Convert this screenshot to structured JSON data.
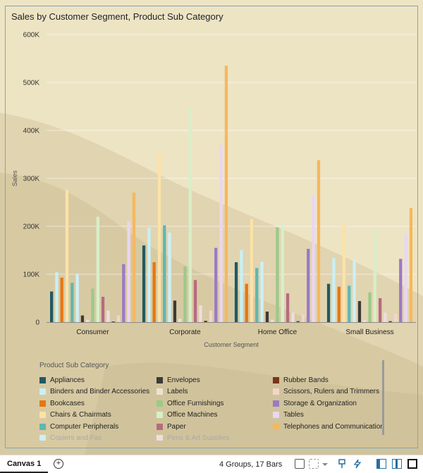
{
  "chart_data": {
    "type": "bar",
    "title": "Sales by Customer Segment, Product Sub Category",
    "xlabel": "Customer Segment",
    "ylabel": "Sales",
    "ylim": [
      0,
      600000
    ],
    "yticks": [
      0,
      100000,
      200000,
      300000,
      400000,
      500000,
      600000
    ],
    "ytick_labels": [
      "0",
      "100K",
      "200K",
      "300K",
      "400K",
      "500K",
      "600K"
    ],
    "grid": true,
    "legend_title": "Product Sub Category",
    "legend_position": "bottom",
    "categories": [
      "Consumer",
      "Corporate",
      "Home Office",
      "Small Business"
    ],
    "series": [
      {
        "name": "Appliances",
        "color": "#1f5a63",
        "values": [
          64000,
          160000,
          125000,
          80000
        ]
      },
      {
        "name": "Binders and Binder Accessories",
        "color": "#c8f0f6",
        "values": [
          104000,
          197000,
          150000,
          134000
        ]
      },
      {
        "name": "Bookcases",
        "color": "#e8760f",
        "values": [
          93000,
          125000,
          80000,
          74000
        ]
      },
      {
        "name": "Chairs & Chairmats",
        "color": "#fde2a6",
        "values": [
          276000,
          350000,
          215000,
          205000
        ]
      },
      {
        "name": "Computer Peripherals",
        "color": "#5fb7b0",
        "values": [
          82000,
          202000,
          113000,
          76000
        ]
      },
      {
        "name": "Copiers and Fax",
        "color": "#cfeff6",
        "values": [
          101000,
          187000,
          126000,
          132000
        ]
      },
      {
        "name": "Envelopes",
        "color": "#3e3a36",
        "values": [
          14000,
          45000,
          22000,
          44000
        ]
      },
      {
        "name": "Labels",
        "color": "#f0e1cf",
        "values": [
          5000,
          7000,
          5000,
          5000
        ]
      },
      {
        "name": "Office Furnishings",
        "color": "#9cc98a",
        "values": [
          70000,
          116000,
          198000,
          62000
        ]
      },
      {
        "name": "Office Machines",
        "color": "#d7efc9",
        "values": [
          220000,
          450000,
          210000,
          195000
        ]
      },
      {
        "name": "Paper",
        "color": "#b76a80",
        "values": [
          53000,
          88000,
          60000,
          50000
        ]
      },
      {
        "name": "Pens & Art Supplies",
        "color": "#f0dde0",
        "values": [
          24000,
          35000,
          20000,
          20000
        ]
      },
      {
        "name": "Rubber Bands",
        "color": "#7a3518",
        "values": [
          1500,
          3000,
          2000,
          2000
        ]
      },
      {
        "name": "Scissors, Rulers and Trimmers",
        "color": "#f3d6c8",
        "values": [
          14000,
          24000,
          16000,
          18000
        ]
      },
      {
        "name": "Storage & Organization",
        "color": "#9b79c6",
        "values": [
          121000,
          155000,
          153000,
          132000
        ]
      },
      {
        "name": "Tables",
        "color": "#ead6f2",
        "values": [
          210000,
          370000,
          265000,
          185000
        ]
      },
      {
        "name": "Telephones and Communication",
        "color": "#f5b85e",
        "values": [
          270000,
          535000,
          338000,
          238000
        ]
      }
    ]
  },
  "legend": {
    "title": "Product Sub Category",
    "items": [
      {
        "label": "Appliances",
        "color": "#1f5a63"
      },
      {
        "label": "Envelopes",
        "color": "#3e3a36"
      },
      {
        "label": "Rubber Bands",
        "color": "#7a3518"
      },
      {
        "label": "Binders and Binder Accessories",
        "color": "#c8f0f6"
      },
      {
        "label": "Labels",
        "color": "#f0e1cf"
      },
      {
        "label": "Scissors, Rulers and Trimmers",
        "color": "#f3d6c8"
      },
      {
        "label": "Bookcases",
        "color": "#e8760f"
      },
      {
        "label": "Office Furnishings",
        "color": "#9cc98a"
      },
      {
        "label": "Storage & Organization",
        "color": "#9b79c6"
      },
      {
        "label": "Chairs & Chairmats",
        "color": "#fde2a6"
      },
      {
        "label": "Office Machines",
        "color": "#d7efc9"
      },
      {
        "label": "Tables",
        "color": "#ead6f2"
      },
      {
        "label": "Computer Peripherals",
        "color": "#5fb7b0"
      },
      {
        "label": "Paper",
        "color": "#b76a80"
      },
      {
        "label": "Telephones and Communication",
        "color": "#f5b85e"
      },
      {
        "label": "Copiers and Fax",
        "color": "#cfeff6",
        "faded": true
      },
      {
        "label": "Pens & Art Supplies",
        "color": "#f0dde0",
        "faded": true
      }
    ]
  },
  "statusbar": {
    "canvas_tab": "Canvas 1",
    "add_icon": "plus-circle-icon",
    "summary": "4 Groups, 17 Bars",
    "icons": [
      "filter-icon",
      "grid-icon",
      "dropdown-icon",
      "pin-icon",
      "lightning-icon",
      "left-panel-icon",
      "center-panel-icon",
      "right-panel-icon"
    ]
  }
}
